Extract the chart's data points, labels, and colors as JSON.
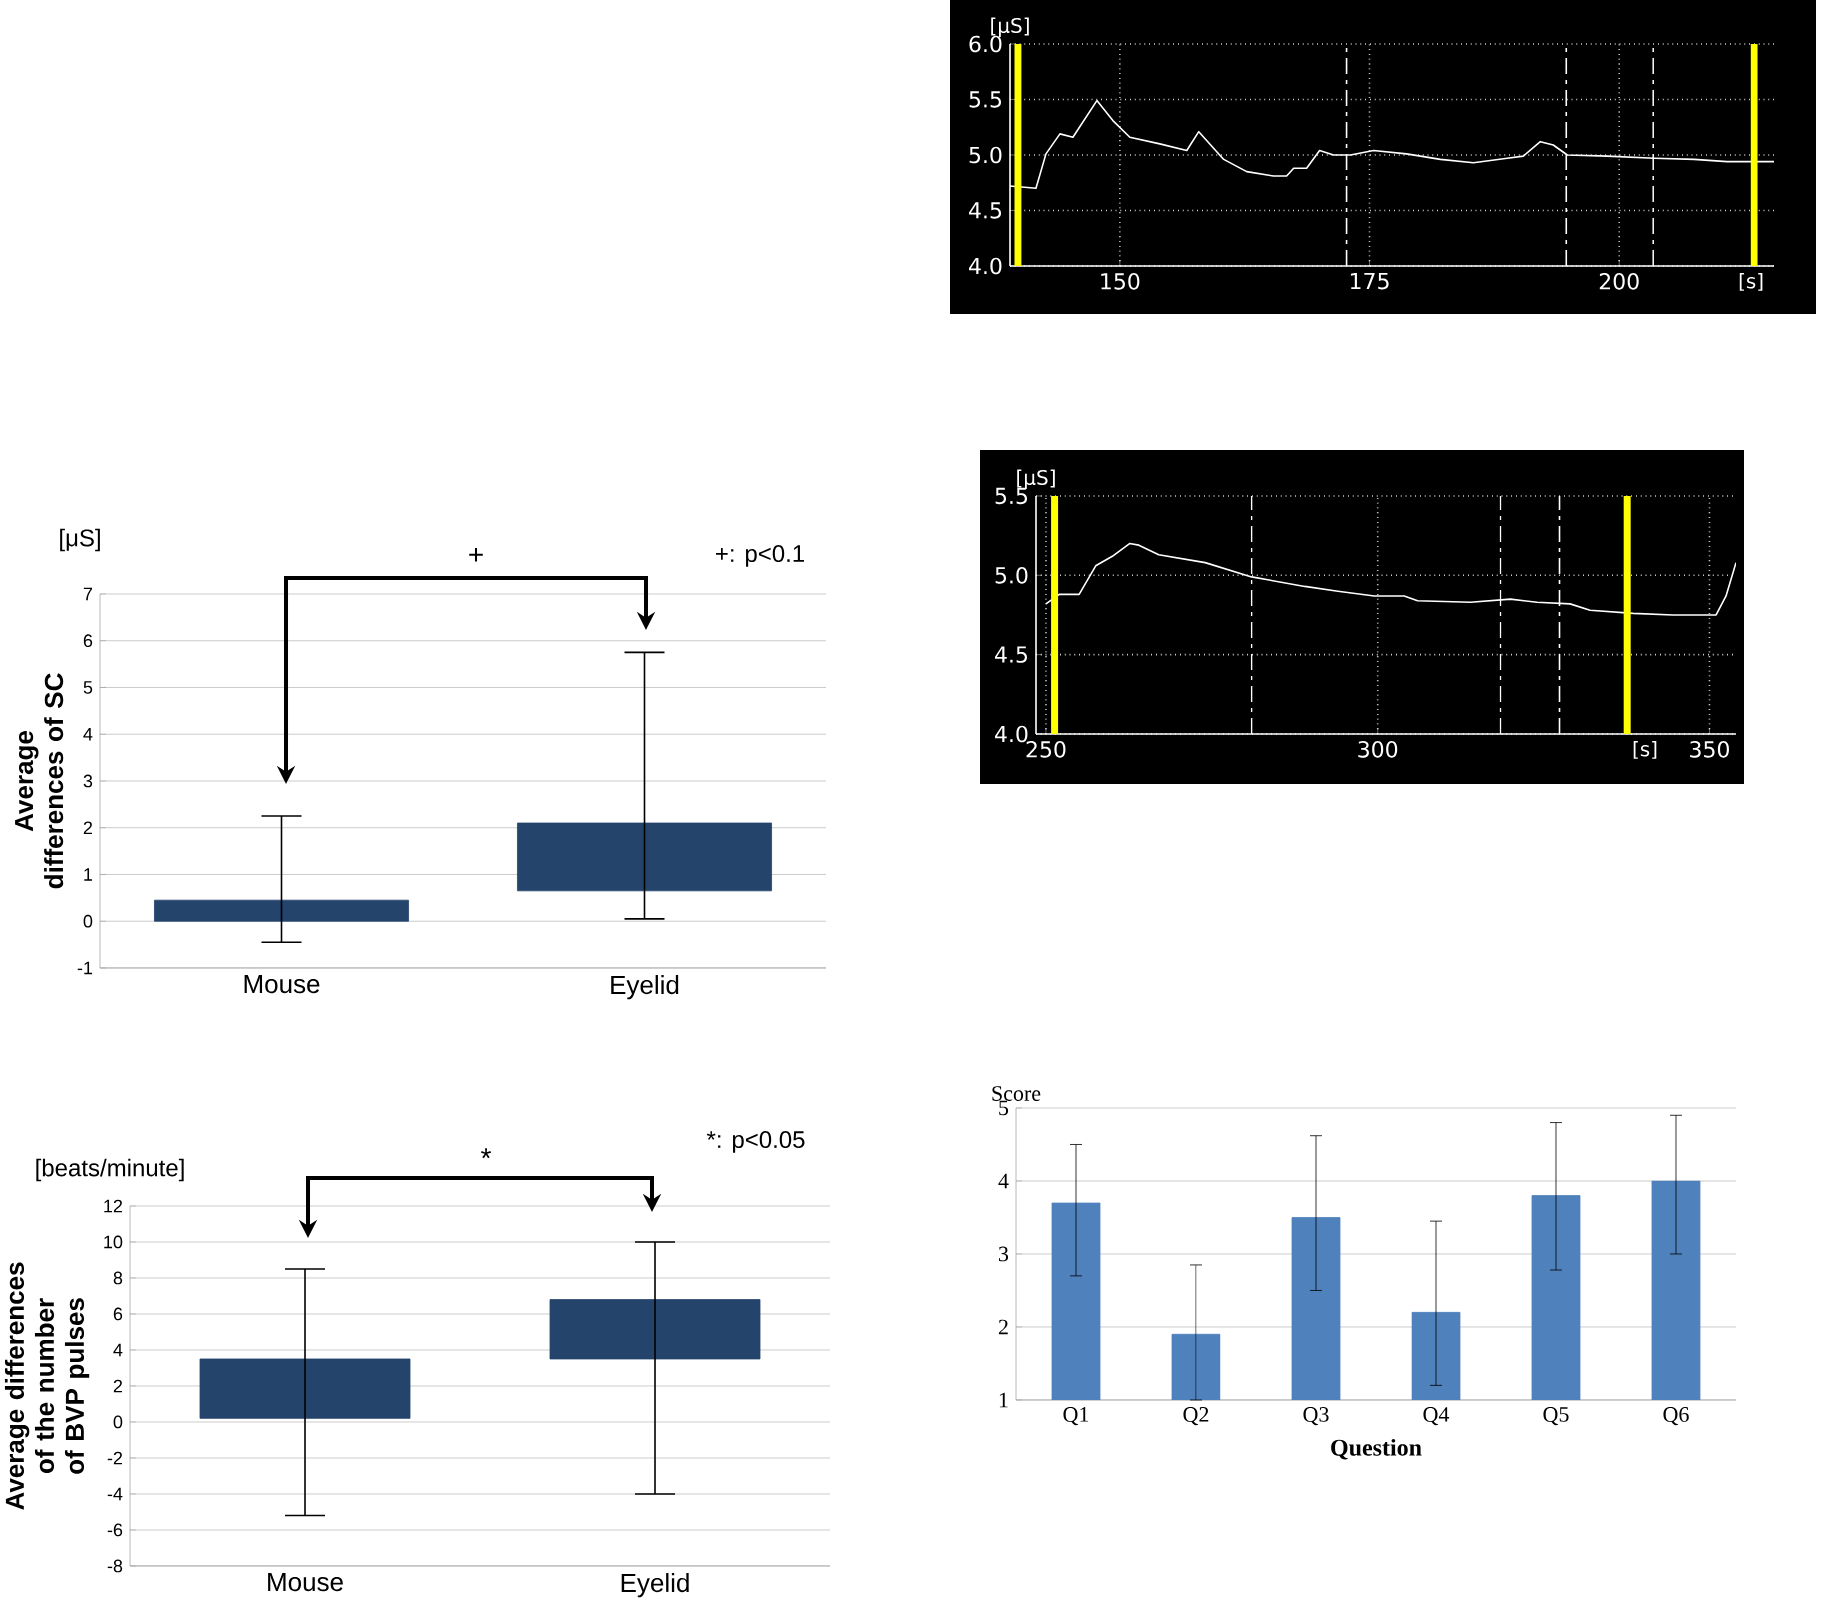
{
  "chart_data": [
    {
      "type": "line",
      "xlabel": "[s]",
      "ylabel": "[μS]",
      "xlim": [
        139,
        215.5
      ],
      "ylim": [
        4,
        6
      ],
      "xticks": [
        150,
        175,
        200
      ],
      "yticks": [
        {
          "value": 4,
          "label": "4.0"
        },
        {
          "value": 4.5,
          "label": "4.5"
        },
        {
          "value": 5,
          "label": "5.0"
        },
        {
          "value": 5.5,
          "label": "5.5"
        },
        {
          "value": 6,
          "label": "6.0"
        }
      ],
      "grid": true,
      "series": [
        {
          "color": "#ffffff",
          "x": [
            139,
            141.6,
            142.6,
            144,
            145.3,
            147.7,
            149.3,
            151,
            154,
            156.7,
            157.9,
            160.4,
            162.7,
            165.4,
            166.7,
            167.4,
            168.7,
            170,
            171.4,
            173.1,
            175.4,
            178.7,
            182.1,
            185.4,
            188.8,
            190.4,
            192.1,
            193.4,
            194.8,
            198.8,
            203.5,
            207.5,
            210.8,
            215.5
          ],
          "values": [
            4.72,
            4.7,
            5.01,
            5.19,
            5.16,
            5.49,
            5.31,
            5.16,
            5.1,
            5.04,
            5.21,
            4.96,
            4.85,
            4.81,
            4.81,
            4.88,
            4.88,
            5.04,
            5.0,
            5.0,
            5.04,
            5.01,
            4.96,
            4.93,
            4.97,
            4.99,
            5.12,
            5.09,
            5.0,
            4.99,
            4.97,
            4.96,
            4.94,
            4.94
          ]
        }
      ],
      "ref_lines": [
        {
          "axis": "x",
          "value": 139.8,
          "color": "#ffff00",
          "line_style": "solid"
        },
        {
          "axis": "x",
          "value": 213.5,
          "color": "#ffff00",
          "line_style": "solid"
        },
        {
          "axis": "x",
          "value": 172.7,
          "color": "#ffffff",
          "line_style": "dashed"
        },
        {
          "axis": "x",
          "value": 194.7,
          "color": "#ffffff",
          "line_style": "dashed"
        },
        {
          "axis": "x",
          "value": 203.4,
          "color": "#ffffff",
          "line_style": "dashed"
        }
      ]
    },
    {
      "type": "line",
      "xlabel": "[s]",
      "ylabel": "[μS]",
      "xlim": [
        248.5,
        354
      ],
      "ylim": [
        4,
        5.5
      ],
      "xticks": [
        250,
        300,
        350
      ],
      "yticks": [
        {
          "value": 4,
          "label": "4.0"
        },
        {
          "value": 4.5,
          "label": "4.5"
        },
        {
          "value": 5,
          "label": "5.0"
        },
        {
          "value": 5.5,
          "label": "5.5"
        }
      ],
      "grid": true,
      "series": [
        {
          "color": "#ffffff",
          "x": [
            250,
            252,
            255,
            257.5,
            260,
            262.6,
            264,
            267,
            274,
            281,
            289,
            294,
            299.5,
            304,
            306,
            314,
            320,
            324,
            329,
            332,
            338.5,
            344.5,
            351,
            352.5,
            354
          ],
          "values": [
            4.82,
            4.88,
            4.88,
            5.06,
            5.12,
            5.2,
            5.19,
            5.13,
            5.08,
            4.99,
            4.93,
            4.9,
            4.87,
            4.87,
            4.84,
            4.83,
            4.85,
            4.83,
            4.82,
            4.78,
            4.76,
            4.75,
            4.75,
            4.87,
            5.08
          ]
        }
      ],
      "ref_lines": [
        {
          "axis": "x",
          "value": 251.3,
          "color": "#ffff00",
          "line_style": "solid"
        },
        {
          "axis": "x",
          "value": 337.6,
          "color": "#ffff00",
          "line_style": "solid"
        },
        {
          "axis": "x",
          "value": 281,
          "color": "#ffffff",
          "line_style": "dashed"
        },
        {
          "axis": "x",
          "value": 318.5,
          "color": "#ffffff",
          "line_style": "dashed"
        },
        {
          "axis": "x",
          "value": 327.4,
          "color": "#ffffff",
          "line_style": "dashed"
        }
      ]
    },
    {
      "type": "bar",
      "ylabel": "Average differences of SC",
      "categories": [
        "Mouse",
        "Eyelid"
      ],
      "base": [
        0,
        0.65
      ],
      "values": [
        0.45,
        1.45
      ],
      "errors": [
        [
          -0.45,
          2.25
        ],
        [
          0.05,
          5.75
        ]
      ],
      "color": "#24446c",
      "ylim": [
        -1,
        7
      ],
      "yticks": [
        -1,
        0,
        1,
        2,
        3,
        4,
        5,
        6,
        7
      ],
      "grid": "y",
      "annotations": [
        "[μS]",
        "+",
        "+:  p<0.1"
      ]
    },
    {
      "type": "bar",
      "xlabel": "Question",
      "ylabel": "Score",
      "categories": [
        "Q1",
        "Q2",
        "Q3",
        "Q4",
        "Q5",
        "Q6"
      ],
      "values": [
        3.7,
        1.9,
        3.5,
        2.2,
        3.8,
        4.0
      ],
      "errors": [
        [
          2.7,
          4.5
        ],
        [
          1.0,
          2.85
        ],
        [
          2.5,
          4.62
        ],
        [
          1.2,
          3.45
        ],
        [
          2.78,
          4.8
        ],
        [
          3.0,
          4.9
        ]
      ],
      "color": "#4f81bd",
      "ylim": [
        1,
        5
      ],
      "yticks": [
        1,
        2,
        3,
        4,
        5
      ],
      "grid": "y"
    },
    {
      "type": "bar",
      "ylabel": "Average differences of the number of BVP pulses",
      "categories": [
        "Mouse",
        "Eyelid"
      ],
      "base": [
        0.2,
        3.5
      ],
      "values": [
        3.3,
        3.3
      ],
      "errors": [
        [
          -5.2,
          8.5
        ],
        [
          -4.0,
          10.0
        ]
      ],
      "color": "#24446c",
      "ylim": [
        -8,
        12
      ],
      "yticks": [
        -8,
        -6,
        -4,
        -2,
        0,
        2,
        4,
        6,
        8,
        10,
        12
      ],
      "grid": "y",
      "annotations": [
        "[beats/minute]",
        "*",
        "*:  p<0.05"
      ]
    }
  ]
}
